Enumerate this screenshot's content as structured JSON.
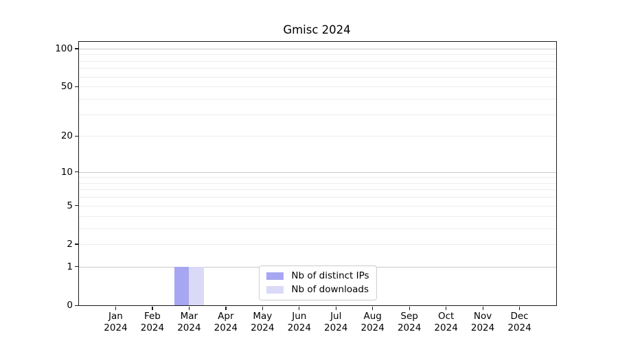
{
  "chart_data": {
    "type": "bar",
    "title": "Gmisc 2024",
    "categories": [
      "Jan",
      "Feb",
      "Mar",
      "Apr",
      "May",
      "Jun",
      "Jul",
      "Aug",
      "Sep",
      "Oct",
      "Nov",
      "Dec"
    ],
    "year_label": "2024",
    "series": [
      {
        "name": "Nb of distinct IPs",
        "color": "#a6a6f2",
        "values": [
          0,
          0,
          1,
          0,
          0,
          0,
          0,
          0,
          0,
          0,
          0,
          0
        ]
      },
      {
        "name": "Nb of downloads",
        "color": "#dadaf7",
        "values": [
          0,
          0,
          1,
          0,
          0,
          0,
          0,
          0,
          0,
          0,
          0,
          0
        ]
      }
    ],
    "yticks": [
      0,
      1,
      2,
      5,
      10,
      20,
      50,
      100
    ],
    "ylim": [
      0,
      113
    ],
    "yscale": "log1p",
    "grid": {
      "major_values": [
        1,
        10,
        100
      ],
      "minor_values": [
        2,
        3,
        4,
        5,
        6,
        7,
        8,
        9,
        20,
        30,
        40,
        50,
        60,
        70,
        80,
        90
      ],
      "major_color": "#c9c9c9",
      "minor_color": "#ededed"
    },
    "legend_position": "lower center",
    "bar_width_fraction": 0.4
  }
}
